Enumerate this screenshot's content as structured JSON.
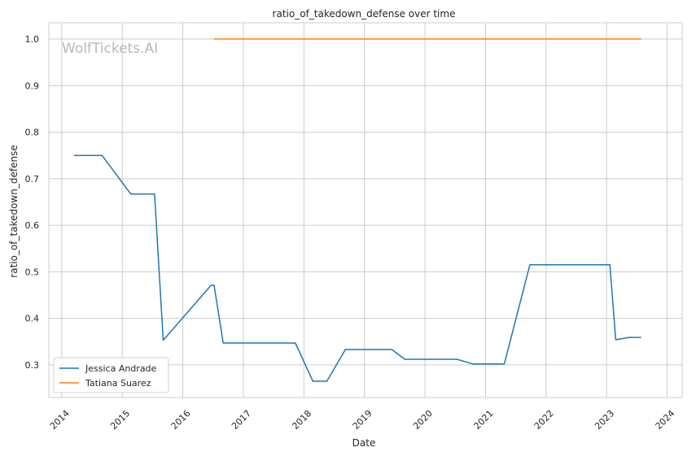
{
  "chart_data": {
    "type": "line",
    "title": "ratio_of_takedown_defense over time",
    "xlabel": "Date",
    "ylabel": "ratio_of_takedown_defense",
    "watermark": "WolfTickets.AI",
    "x_ticks": [
      "2014",
      "2015",
      "2016",
      "2017",
      "2018",
      "2019",
      "2020",
      "2021",
      "2022",
      "2023",
      "2024"
    ],
    "y_ticks": [
      "0.3",
      "0.4",
      "0.5",
      "0.6",
      "0.7",
      "0.8",
      "0.9",
      "1.0"
    ],
    "xlim": [
      "2013-10-15",
      "2024-04-01"
    ],
    "ylim": [
      0.23,
      1.035
    ],
    "grid": true,
    "legend_position": "lower-left",
    "series": [
      {
        "name": "Jessica Andrade",
        "color": "#1f77b4",
        "points": [
          [
            "2014-03-15",
            0.75
          ],
          [
            "2014-09-01",
            0.75
          ],
          [
            "2015-02-21",
            0.667
          ],
          [
            "2015-07-15",
            0.667
          ],
          [
            "2015-09-05",
            0.353
          ],
          [
            "2016-06-20",
            0.471
          ],
          [
            "2016-07-08",
            0.471
          ],
          [
            "2016-09-01",
            0.347
          ],
          [
            "2017-11-10",
            0.347
          ],
          [
            "2018-02-24",
            0.265
          ],
          [
            "2018-05-19",
            0.265
          ],
          [
            "2018-09-08",
            0.333
          ],
          [
            "2019-06-15",
            0.333
          ],
          [
            "2019-09-01",
            0.312
          ],
          [
            "2020-07-12",
            0.312
          ],
          [
            "2020-10-17",
            0.302
          ],
          [
            "2021-04-24",
            0.302
          ],
          [
            "2021-09-25",
            0.515
          ],
          [
            "2023-01-21",
            0.515
          ],
          [
            "2023-02-25",
            0.354
          ],
          [
            "2023-05-15",
            0.359
          ],
          [
            "2023-07-29",
            0.359
          ]
        ]
      },
      {
        "name": "Tatiana Suarez",
        "color": "#ff7f0e",
        "points": [
          [
            "2016-07-08",
            1.0
          ],
          [
            "2023-07-29",
            1.0
          ]
        ]
      }
    ]
  }
}
